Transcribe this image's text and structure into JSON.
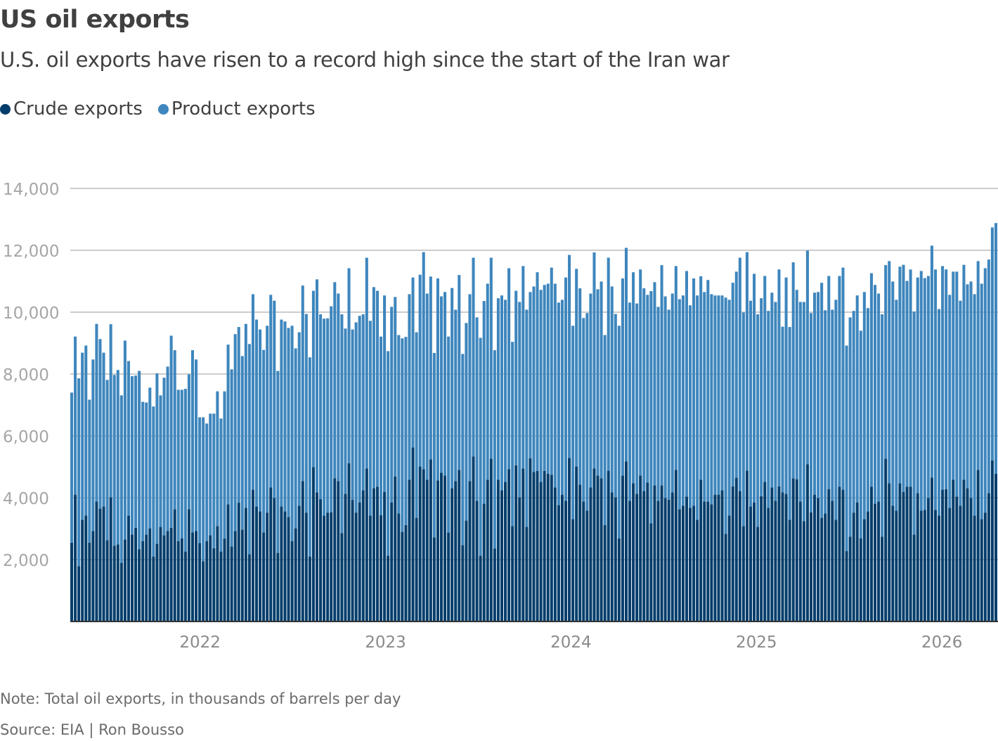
{
  "title": "US oil exports",
  "subtitle": "U.S. oil exports have risen to a record high since the start of the Iran war",
  "note": "Note: Total oil exports, in thousands of barrels per day",
  "source": "Source: EIA | Ron Bousso",
  "colors": {
    "crude": "#023d6b",
    "product": "#3e86bd",
    "grid": "#cccccc",
    "axis": "#333333"
  },
  "chart_data": {
    "type": "bar",
    "stacked": true,
    "frequency": "weekly",
    "title": "US oil exports",
    "subtitle": "U.S. oil exports have risen to a record high since the start of the Iran war",
    "xlabel": "",
    "ylabel": "",
    "ylim": [
      0,
      14000
    ],
    "y_ticks": [
      2000,
      4000,
      6000,
      8000,
      10000,
      12000,
      14000
    ],
    "y_tick_labels": [
      "2,000",
      "4,000",
      "6,000",
      "8,000",
      "10,000",
      "12,000",
      "14,000"
    ],
    "x_tick_labels": [
      "2022",
      "2023",
      "2024",
      "2025",
      "2026"
    ],
    "grid": true,
    "legend": "top-left",
    "series": [
      {
        "name": "Crude exports",
        "color": "#023d6b",
        "values": [
          2550,
          4100,
          1790,
          3290,
          3420,
          2550,
          2920,
          3880,
          3650,
          3720,
          2630,
          4010,
          2450,
          2490,
          1900,
          2650,
          3420,
          2810,
          3030,
          2330,
          2600,
          2810,
          3010,
          2100,
          2510,
          3060,
          2790,
          2920,
          3030,
          3630,
          2600,
          2690,
          2260,
          3630,
          2880,
          2920,
          2540,
          1950,
          2600,
          2790,
          2370,
          3080,
          2260,
          2680,
          3790,
          2420,
          2920,
          3840,
          2970,
          3670,
          2170,
          4260,
          3720,
          3560,
          2880,
          3520,
          4330,
          3990,
          2220,
          3720,
          3560,
          3380,
          2600,
          3010,
          3740,
          4540,
          3520,
          2100,
          4990,
          4170,
          3960,
          3420,
          3520,
          3530,
          4630,
          4540,
          2860,
          4130,
          5120,
          3930,
          3520,
          3850,
          4240,
          4950,
          3420,
          4310,
          4360,
          3440,
          4190,
          2130,
          3850,
          4690,
          3490,
          2900,
          3120,
          4580,
          5630,
          3350,
          5010,
          4920,
          4580,
          5240,
          2720,
          4560,
          4810,
          4720,
          2880,
          4310,
          4540,
          4900,
          2470,
          3260,
          4540,
          5330,
          3900,
          2130,
          3810,
          4580,
          5260,
          2360,
          4580,
          4240,
          4510,
          4920,
          3080,
          5050,
          4010,
          4950,
          3060,
          5280,
          4830,
          4870,
          4510,
          4870,
          4780,
          4740,
          4330,
          3760,
          4100,
          3900,
          5290,
          3310,
          5010,
          4420,
          3880,
          3580,
          4330,
          4950,
          4720,
          4630,
          3120,
          4880,
          4170,
          4010,
          2690,
          4720,
          5170,
          3900,
          4470,
          4130,
          4720,
          4220,
          4490,
          3170,
          4400,
          3900,
          4400,
          3990,
          3940,
          4170,
          4900,
          3630,
          3740,
          4040,
          3670,
          3740,
          3290,
          4580,
          3880,
          3880,
          3790,
          4100,
          4100,
          4240,
          2830,
          3420,
          4370,
          4650,
          4220,
          3080,
          4880,
          3720,
          3850,
          3060,
          4050,
          4510,
          3670,
          4330,
          3900,
          4370,
          4170,
          4130,
          3290,
          4630,
          4600,
          3880,
          3240,
          5080,
          3530,
          4100,
          3990,
          3350,
          3490,
          4280,
          3900,
          3290,
          4360,
          4260,
          2280,
          2740,
          3520,
          3850,
          2690,
          3310,
          3560,
          4360,
          3810,
          3880,
          2740,
          5260,
          4470,
          3740,
          3580,
          4470,
          4190,
          4360,
          4360,
          2810,
          4150,
          3580,
          3610,
          3990,
          4650,
          3610,
          3420,
          4260,
          4280,
          3670,
          4580,
          4040,
          3740,
          4580,
          4310,
          3990,
          3420,
          4900,
          3310,
          3520,
          4150,
          5210,
          4780
        ]
      },
      {
        "name": "Product exports",
        "color": "#3e86bd",
        "values": [
          4850,
          5110,
          6070,
          5400,
          5500,
          4620,
          5550,
          5740,
          5480,
          4970,
          5180,
          5600,
          5520,
          5640,
          5410,
          6430,
          5000,
          5120,
          4920,
          5770,
          4500,
          4270,
          4550,
          4850,
          5510,
          4250,
          5090,
          5320,
          6210,
          5140,
          4890,
          4800,
          5260,
          4360,
          5890,
          5550,
          4060,
          4650,
          3800,
          3930,
          4350,
          4360,
          4300,
          4760,
          5160,
          5730,
          6370,
          5680,
          5610,
          5950,
          6800,
          6320,
          6040,
          5880,
          5900,
          6040,
          6230,
          6380,
          5880,
          6040,
          6140,
          6110,
          6960,
          5820,
          5610,
          6320,
          6420,
          6440,
          5700,
          6890,
          5970,
          6370,
          6280,
          6660,
          6340,
          6060,
          7070,
          5340,
          6300,
          5510,
          6150,
          6030,
          5690,
          6810,
          6300,
          6500,
          6330,
          5770,
          6350,
          6610,
          6320,
          5800,
          5770,
          6250,
          6080,
          6000,
          5490,
          6000,
          6200,
          7020,
          6020,
          5910,
          5960,
          6530,
          5700,
          5930,
          6330,
          6470,
          5540,
          6300,
          6180,
          6390,
          6040,
          6430,
          5930,
          7040,
          6550,
          6340,
          6500,
          6410,
          5870,
          6300,
          5890,
          6500,
          5960,
          5640,
          6320,
          6540,
          7020,
          5370,
          6000,
          6420,
          6210,
          6010,
          6140,
          6700,
          6590,
          6550,
          6300,
          7220,
          6560,
          6250,
          6390,
          6350,
          5930,
          6390,
          6270,
          6980,
          6020,
          6360,
          6140,
          6880,
          6660,
          5930,
          6870,
          6370,
          6910,
          6410,
          6820,
          6150,
          6660,
          6550,
          6070,
          7510,
          6570,
          6270,
          7120,
          6520,
          6140,
          6430,
          6590,
          6790,
          6800,
          7290,
          6550,
          7350,
          7250,
          6580,
          6770,
          7160,
          6790,
          6440,
          6440,
          6300,
          7640,
          6980,
          6580,
          6660,
          7540,
          6910,
          7060,
          6650,
          7390,
          6870,
          6400,
          6660,
          6370,
          6300,
          6430,
          7010,
          5360,
          6990,
          6230,
          6980,
          6120,
          6450,
          7090,
          6910,
          6440,
          6530,
          6660,
          7600,
          6570,
          6890,
          6180,
          7110,
          6810,
          7180,
          6640,
          7090,
          6520,
          6690,
          6710,
          7340,
          6570,
          6900,
          7070,
          6720,
          7190,
          6260,
          7180,
          7250,
          6820,
          7000,
          7340,
          6650,
          7020,
          7210,
          6970,
          7750,
          7490,
          7180,
          7500,
          7770,
          6680,
          7230,
          7100,
          6890,
          6730,
          7270,
          6630,
          6950,
          6590,
          7000,
          7160,
          6750,
          7610,
          7900,
          7550,
          7530,
          8100
        ]
      }
    ]
  }
}
